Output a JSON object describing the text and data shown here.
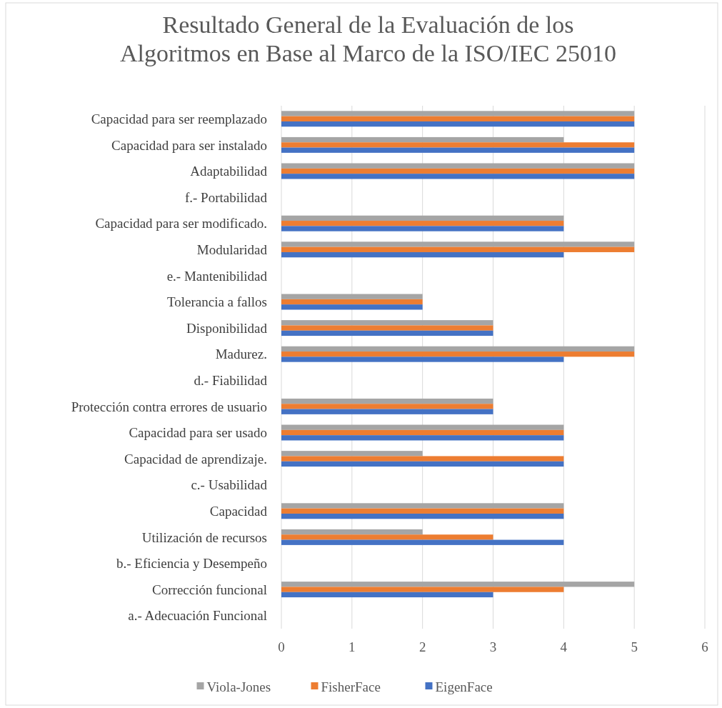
{
  "chart_data": {
    "type": "bar",
    "orientation": "horizontal",
    "title": "Resultado General de la Evaluación de los Algoritmos en Base al Marco de la ISO/IEC 25010",
    "categories": [
      "Capacidad para ser reemplazado",
      "Capacidad para ser instalado",
      "Adaptabilidad",
      "f.- Portabilidad",
      "Capacidad para ser modificado.",
      "Modularidad",
      "e.- Mantenibilidad",
      "Tolerancia a fallos",
      "Disponibilidad",
      "Madurez.",
      "d.- Fiabilidad",
      "Protección contra errores de usuario",
      "Capacidad para ser usado",
      "Capacidad de aprendizaje.",
      "c.- Usabilidad",
      "Capacidad",
      "Utilización de recursos",
      "b.- Eficiencia y Desempeño",
      "Corrección funcional",
      "a.- Adecuación Funcional"
    ],
    "series": [
      {
        "name": "Viola-Jones",
        "color": "#a5a5a5",
        "values": [
          5,
          4,
          5,
          null,
          4,
          5,
          null,
          2,
          3,
          5,
          null,
          3,
          4,
          2,
          null,
          4,
          2,
          null,
          5,
          null
        ]
      },
      {
        "name": "FisherFace",
        "color": "#ed7d31",
        "values": [
          5,
          5,
          5,
          null,
          4,
          5,
          null,
          2,
          3,
          5,
          null,
          3,
          4,
          4,
          null,
          4,
          3,
          null,
          4,
          null
        ]
      },
      {
        "name": "EigenFace",
        "color": "#4472c4",
        "values": [
          5,
          5,
          5,
          null,
          4,
          4,
          null,
          2,
          3,
          4,
          null,
          3,
          4,
          4,
          null,
          4,
          4,
          null,
          3,
          null
        ]
      }
    ],
    "xlim": [
      0,
      6
    ],
    "xticks": [
      0,
      1,
      2,
      3,
      4,
      5,
      6
    ],
    "grid": "x",
    "legend": "bottom"
  }
}
